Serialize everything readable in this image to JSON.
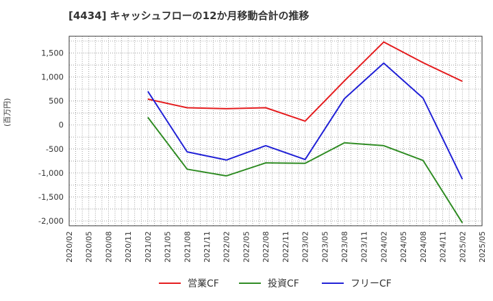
{
  "chart_data": {
    "type": "line",
    "title": "[4434]  キャッシュフローの12か月移動合計の推移",
    "ylabel": "(百万円)",
    "xlabel": "",
    "ylim": [
      -2100,
      1850
    ],
    "yticks": [
      1500,
      1000,
      500,
      0,
      -500,
      -1000,
      -1500,
      -2000
    ],
    "ytick_labels": [
      "1,500",
      "1,000",
      "500",
      "0",
      "-500",
      "-1,000",
      "-1,500",
      "-2,000"
    ],
    "x_ticks": [
      "2020/02",
      "2020/05",
      "2020/08",
      "2020/11",
      "2021/02",
      "2021/05",
      "2021/08",
      "2021/11",
      "2022/02",
      "2022/05",
      "2022/08",
      "2022/11",
      "2023/02",
      "2023/05",
      "2023/08",
      "2023/11",
      "2024/02",
      "2024/05",
      "2024/08",
      "2024/11",
      "2025/02",
      "2025/05"
    ],
    "grid": true,
    "legend_position": "bottom",
    "x": [
      "2021/02",
      "2021/08",
      "2022/02",
      "2022/08",
      "2023/02",
      "2023/08",
      "2024/02",
      "2024/08",
      "2025/02"
    ],
    "series": [
      {
        "name": "営業CF",
        "color": "#e41a1c",
        "values": [
          540,
          360,
          340,
          360,
          80,
          920,
          1730,
          1300,
          910
        ]
      },
      {
        "name": "投資CF",
        "color": "#2e8b22",
        "values": [
          160,
          -920,
          -1060,
          -790,
          -800,
          -370,
          -430,
          -740,
          -2040
        ]
      },
      {
        "name": "フリーCF",
        "color": "#1f1fd6",
        "values": [
          700,
          -560,
          -730,
          -430,
          -720,
          550,
          1290,
          560,
          -1130
        ]
      }
    ]
  }
}
